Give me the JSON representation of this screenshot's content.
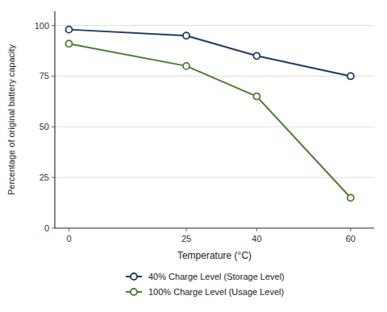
{
  "chart_data": {
    "type": "line",
    "x": [
      0,
      25,
      40,
      60
    ],
    "series": [
      {
        "name": "40% Charge Level (Storage Level)",
        "color": "#1F3864",
        "marker": "circle",
        "values": [
          98,
          95,
          85,
          75
        ]
      },
      {
        "name": "100% Charge Level (Usage Level)",
        "color": "#4a7c2f",
        "marker": "circle",
        "values": [
          91,
          80,
          65,
          15
        ]
      }
    ],
    "xlabel": "Temperature (°C)",
    "ylabel": "Percentage of original battery capacity",
    "xlim": [
      -3,
      65
    ],
    "ylim": [
      0,
      107
    ],
    "xticks": [
      0,
      25,
      40,
      60
    ],
    "yticks": [
      0,
      25,
      50,
      75,
      100
    ],
    "grid": "y",
    "legend": "bottom"
  }
}
